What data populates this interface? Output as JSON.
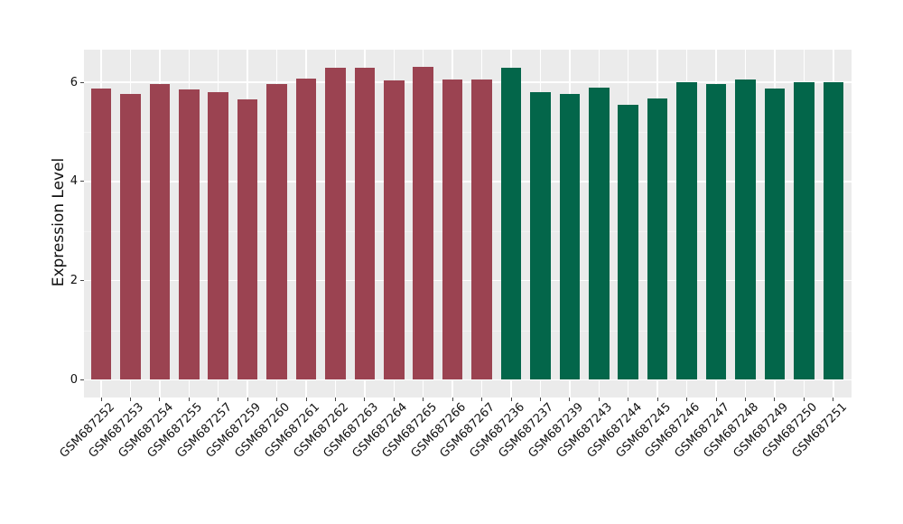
{
  "chart_data": {
    "type": "bar",
    "title": "",
    "xlabel": "",
    "ylabel": "Expression Level",
    "yticks": [
      0,
      2,
      4,
      6
    ],
    "y_minor_ticks": [
      1,
      3,
      5
    ],
    "ylim": [
      -0.35,
      6.67
    ],
    "grid": "on",
    "legend": "none",
    "panel_bg": "#EBEBEB",
    "grid_major_color": "#FFFFFF",
    "grid_minor_color": "#F5F5F5",
    "tick_color": "#444444",
    "axis_text_color": "#111111",
    "group_colors": {
      "group1": "#9B4351",
      "group2": "#03664A"
    },
    "bars": [
      {
        "label": "GSM687252",
        "value": 5.87,
        "group": "group1"
      },
      {
        "label": "GSM687253",
        "value": 5.77,
        "group": "group1"
      },
      {
        "label": "GSM687254",
        "value": 5.96,
        "group": "group1"
      },
      {
        "label": "GSM687255",
        "value": 5.85,
        "group": "group1"
      },
      {
        "label": "GSM687257",
        "value": 5.8,
        "group": "group1"
      },
      {
        "label": "GSM687259",
        "value": 5.66,
        "group": "group1"
      },
      {
        "label": "GSM687260",
        "value": 5.96,
        "group": "group1"
      },
      {
        "label": "GSM687261",
        "value": 6.08,
        "group": "group1"
      },
      {
        "label": "GSM687262",
        "value": 6.3,
        "group": "group1"
      },
      {
        "label": "GSM687263",
        "value": 6.3,
        "group": "group1"
      },
      {
        "label": "GSM687264",
        "value": 6.04,
        "group": "group1"
      },
      {
        "label": "GSM687265",
        "value": 6.32,
        "group": "group1"
      },
      {
        "label": "GSM687266",
        "value": 6.06,
        "group": "group1"
      },
      {
        "label": "GSM687267",
        "value": 6.06,
        "group": "group1"
      },
      {
        "label": "GSM687236",
        "value": 6.29,
        "group": "group2"
      },
      {
        "label": "GSM687237",
        "value": 5.8,
        "group": "group2"
      },
      {
        "label": "GSM687239",
        "value": 5.77,
        "group": "group2"
      },
      {
        "label": "GSM687243",
        "value": 5.89,
        "group": "group2"
      },
      {
        "label": "GSM687244",
        "value": 5.54,
        "group": "group2"
      },
      {
        "label": "GSM687245",
        "value": 5.68,
        "group": "group2"
      },
      {
        "label": "GSM687246",
        "value": 6.01,
        "group": "group2"
      },
      {
        "label": "GSM687247",
        "value": 5.96,
        "group": "group2"
      },
      {
        "label": "GSM687248",
        "value": 6.06,
        "group": "group2"
      },
      {
        "label": "GSM687249",
        "value": 5.87,
        "group": "group2"
      },
      {
        "label": "GSM687250",
        "value": 6.0,
        "group": "group2"
      },
      {
        "label": "GSM687251",
        "value": 6.01,
        "group": "group2"
      }
    ]
  }
}
